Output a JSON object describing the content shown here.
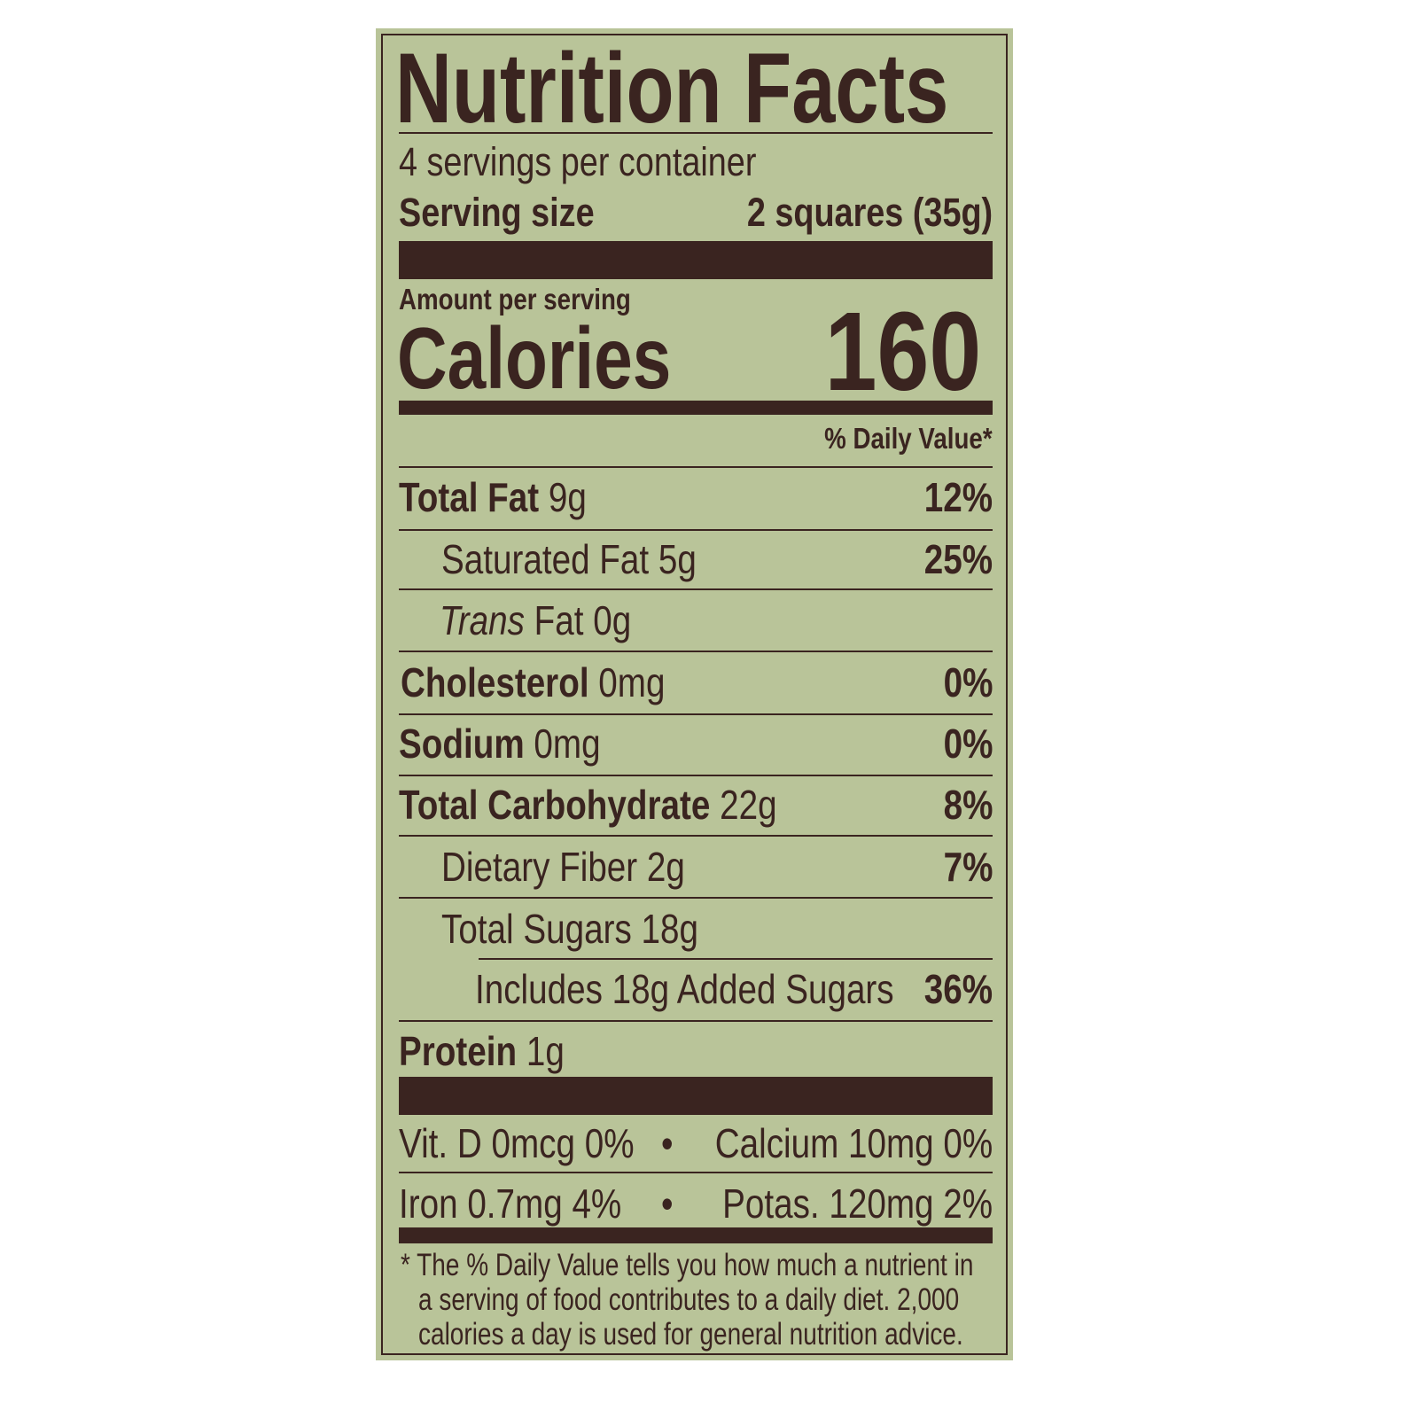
{
  "title": "Nutrition Facts",
  "servings_per_container": "4 servings per container",
  "serving_size_label": "Serving size",
  "serving_size_value": "2 squares (35g)",
  "amount_per_serving": "Amount per serving",
  "calories_label": "Calories",
  "calories_value": "160",
  "daily_value_header": "% Daily Value*",
  "nutrients": [
    {
      "name": "Total Fat",
      "amount": "9g",
      "dv": "12%"
    },
    {
      "name": "Saturated Fat",
      "amount": "5g",
      "dv": "25%"
    },
    {
      "name": "Trans",
      "name_rest": "Fat",
      "amount": "0g",
      "dv": ""
    },
    {
      "name": "Cholesterol",
      "amount": "0mg",
      "dv": "0%"
    },
    {
      "name": "Sodium",
      "amount": "0mg",
      "dv": "0%"
    },
    {
      "name": "Total Carbohydrate",
      "amount": "22g",
      "dv": "8%"
    },
    {
      "name": "Dietary Fiber",
      "amount": "2g",
      "dv": "7%"
    },
    {
      "name": "Total Sugars",
      "amount": "18g",
      "dv": ""
    },
    {
      "name": "Includes 18g Added Sugars",
      "amount": "",
      "dv": "36%"
    },
    {
      "name": "Protein",
      "amount": "1g",
      "dv": ""
    }
  ],
  "vitamins": {
    "line1_left": "Vit. D 0mcg 0%",
    "line1_right": "Calcium 10mg 0%",
    "line2_left": "Iron 0.7mg 4%",
    "line2_right": "Potas. 120mg 2%",
    "bullet": "•"
  },
  "footnote": [
    "* The % Daily Value tells you how much a nutrient in",
    "a serving of food contributes to a daily diet. 2,000",
    "calories a day is used for general nutrition advice."
  ],
  "colors": {
    "background": "#b9c499",
    "ink": "#3a2420"
  }
}
